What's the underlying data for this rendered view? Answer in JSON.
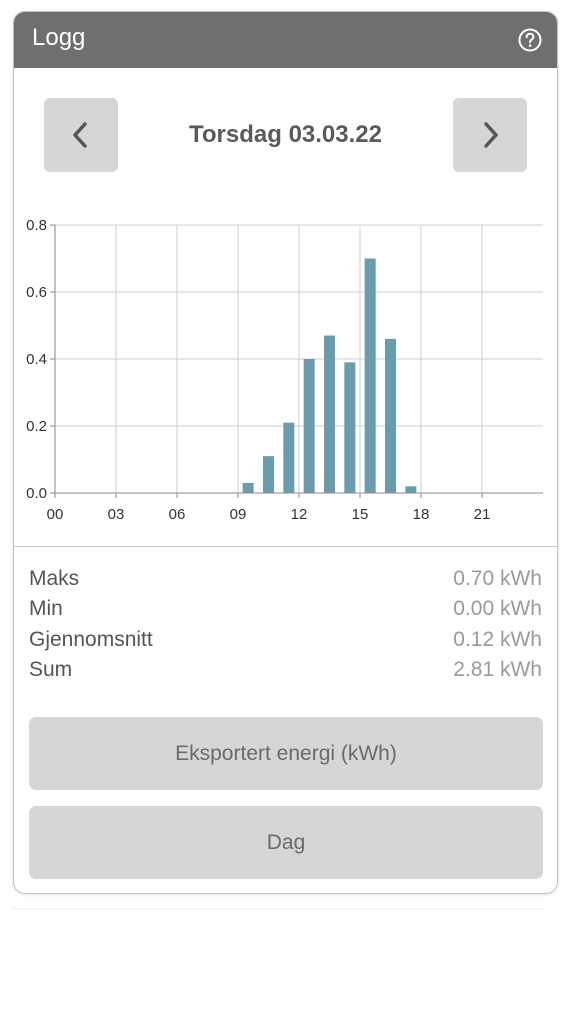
{
  "header": {
    "title": "Logg",
    "help_icon": "help-circle-icon"
  },
  "nav": {
    "prev_icon": "chevron-left-icon",
    "next_icon": "chevron-right-icon",
    "date": "Torsdag 03.03.22"
  },
  "chart_data": {
    "type": "bar",
    "x": [
      0,
      1,
      2,
      3,
      4,
      5,
      6,
      7,
      8,
      9,
      10,
      11,
      12,
      13,
      14,
      15,
      16,
      17,
      18,
      19,
      20,
      21,
      22,
      23
    ],
    "values": [
      0,
      0,
      0,
      0,
      0,
      0,
      0,
      0,
      0,
      0.03,
      0.11,
      0.21,
      0.4,
      0.47,
      0.39,
      0.7,
      0.46,
      0.02,
      0,
      0,
      0,
      0,
      0,
      0
    ],
    "xtick_values": [
      0,
      3,
      6,
      9,
      12,
      15,
      18,
      21
    ],
    "xtick_labels": [
      "00",
      "03",
      "06",
      "09",
      "12",
      "15",
      "18",
      "21"
    ],
    "ytick_values": [
      0,
      0.2,
      0.4,
      0.6,
      0.8
    ],
    "ytick_labels": [
      "0.0",
      "0.2",
      "0.4",
      "0.6",
      "0.8"
    ],
    "xlim": [
      0,
      24
    ],
    "ylim": [
      0,
      0.8
    ],
    "grid": true,
    "bar_color": "#6b9cad",
    "title": "",
    "xlabel": "",
    "ylabel": ""
  },
  "stats": [
    {
      "label": "Maks",
      "value": "0.70 kWh"
    },
    {
      "label": "Min",
      "value": "0.00 kWh"
    },
    {
      "label": "Gjennomsnitt",
      "value": "0.12 kWh"
    },
    {
      "label": "Sum",
      "value": "2.81 kWh"
    }
  ],
  "buttons": {
    "energy_type": "Eksportert energi (kWh)",
    "period": "Dag"
  }
}
